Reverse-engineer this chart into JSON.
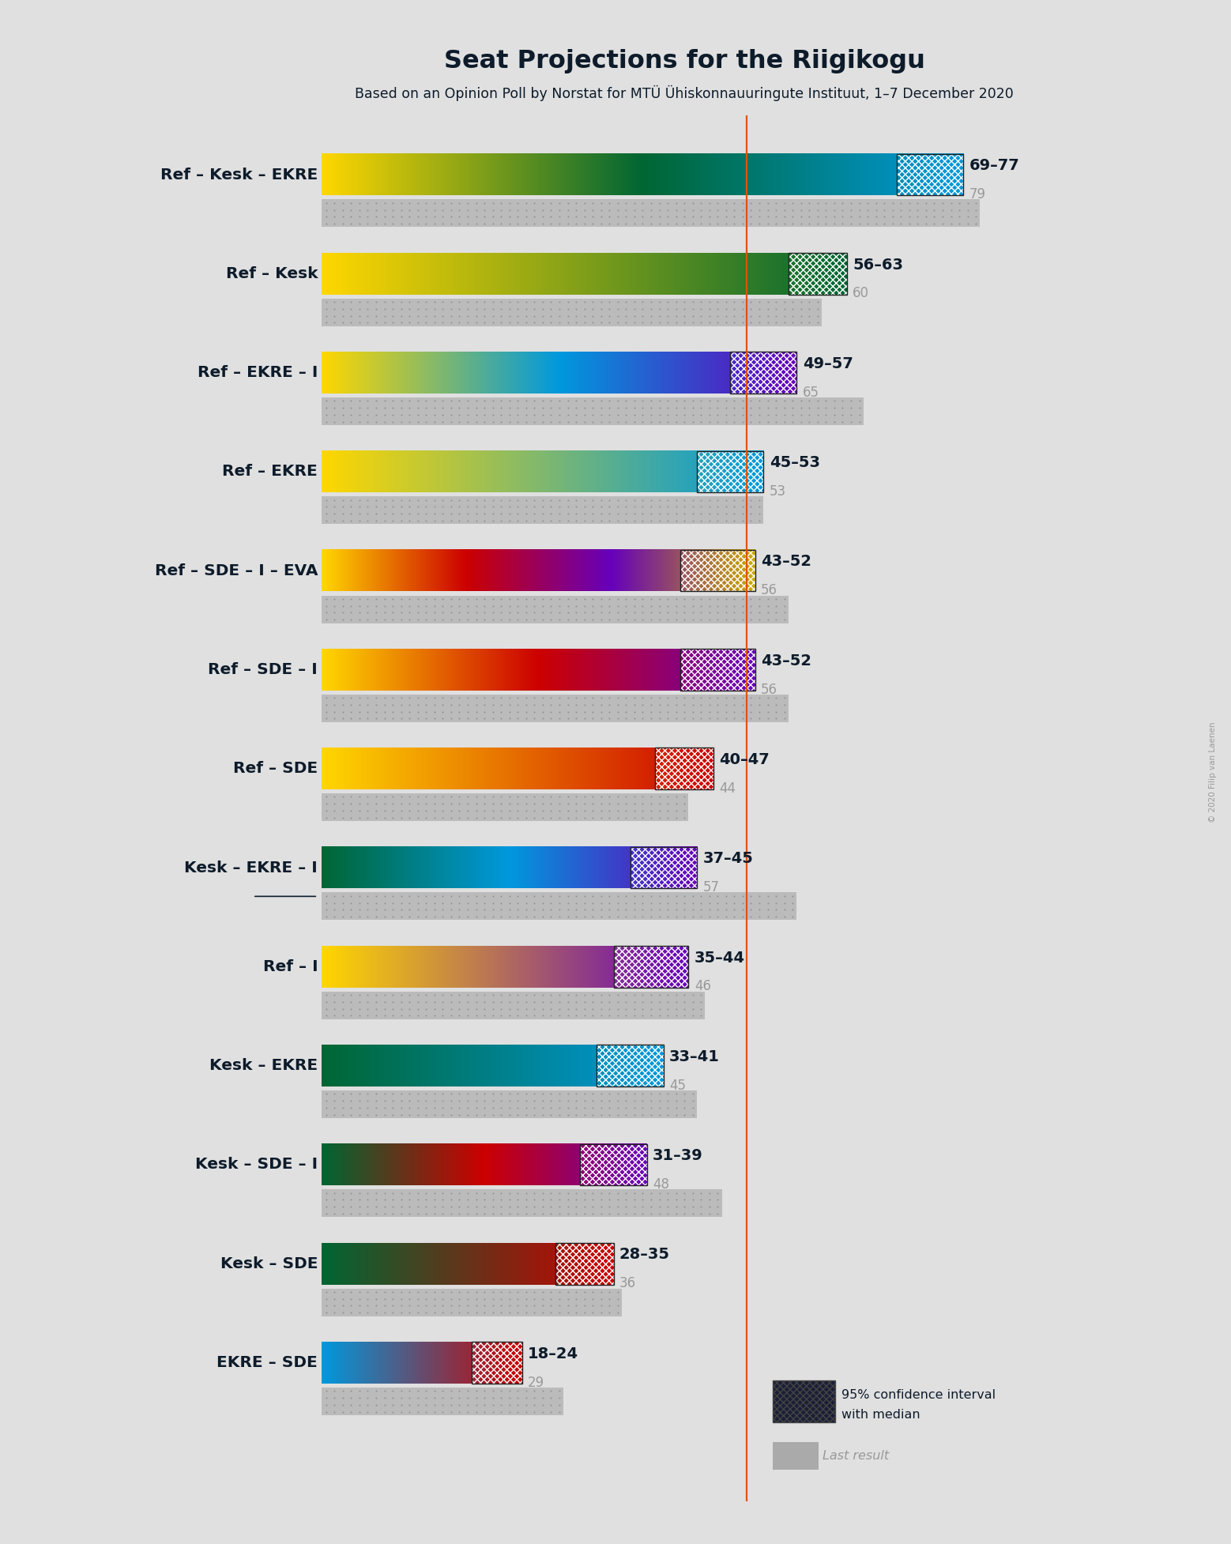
{
  "title": "Seat Projections for the Riigikogu",
  "subtitle": "Based on an Opinion Poll by Norstat for MTÜ Ühiskonnauuringute Instituut, 1–7 December 2020",
  "copyright": "© 2020 Filip van Laenen",
  "majority_line": 51,
  "background_color": "#e0e0e0",
  "figsize": [
    15.58,
    19.54
  ],
  "coalitions": [
    {
      "name": "Ref – Kesk – EKRE",
      "ci_low": 69,
      "ci_high": 77,
      "last": 79,
      "parties": [
        "Ref",
        "Kesk",
        "EKRE"
      ],
      "underline": false
    },
    {
      "name": "Ref – Kesk",
      "ci_low": 56,
      "ci_high": 63,
      "last": 60,
      "parties": [
        "Ref",
        "Kesk"
      ],
      "underline": false
    },
    {
      "name": "Ref – EKRE – I",
      "ci_low": 49,
      "ci_high": 57,
      "last": 65,
      "parties": [
        "Ref",
        "EKRE",
        "I"
      ],
      "underline": false
    },
    {
      "name": "Ref – EKRE",
      "ci_low": 45,
      "ci_high": 53,
      "last": 53,
      "parties": [
        "Ref",
        "EKRE"
      ],
      "underline": false
    },
    {
      "name": "Ref – SDE – I – EVA",
      "ci_low": 43,
      "ci_high": 52,
      "last": 56,
      "parties": [
        "Ref",
        "SDE",
        "I",
        "EVA"
      ],
      "underline": false
    },
    {
      "name": "Ref – SDE – I",
      "ci_low": 43,
      "ci_high": 52,
      "last": 56,
      "parties": [
        "Ref",
        "SDE",
        "I"
      ],
      "underline": false
    },
    {
      "name": "Ref – SDE",
      "ci_low": 40,
      "ci_high": 47,
      "last": 44,
      "parties": [
        "Ref",
        "SDE"
      ],
      "underline": false
    },
    {
      "name": "Kesk – EKRE – I",
      "ci_low": 37,
      "ci_high": 45,
      "last": 57,
      "parties": [
        "Kesk",
        "EKRE",
        "I"
      ],
      "underline": true
    },
    {
      "name": "Ref – I",
      "ci_low": 35,
      "ci_high": 44,
      "last": 46,
      "parties": [
        "Ref",
        "I"
      ],
      "underline": false
    },
    {
      "name": "Kesk – EKRE",
      "ci_low": 33,
      "ci_high": 41,
      "last": 45,
      "parties": [
        "Kesk",
        "EKRE"
      ],
      "underline": false
    },
    {
      "name": "Kesk – SDE – I",
      "ci_low": 31,
      "ci_high": 39,
      "last": 48,
      "parties": [
        "Kesk",
        "SDE",
        "I"
      ],
      "underline": false
    },
    {
      "name": "Kesk – SDE",
      "ci_low": 28,
      "ci_high": 35,
      "last": 36,
      "parties": [
        "Kesk",
        "SDE"
      ],
      "underline": false
    },
    {
      "name": "EKRE – SDE",
      "ci_low": 18,
      "ci_high": 24,
      "last": 29,
      "parties": [
        "EKRE",
        "SDE"
      ],
      "underline": false
    }
  ],
  "party_colors": {
    "Ref": "#FFD700",
    "Kesk": "#006633",
    "EKRE": "#0099DD",
    "SDE": "#CC0000",
    "I": "#6600BB",
    "EVA": "#CCAA00"
  },
  "xmax": 82
}
